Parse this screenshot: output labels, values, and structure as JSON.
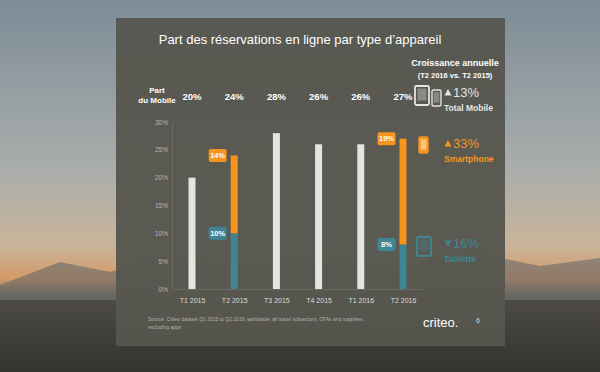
{
  "chart_data": {
    "type": "bar",
    "title": "Part des réservations en ligne par type d’appareil",
    "categories": [
      "T1 2015",
      "T2 2015",
      "T3 2015",
      "T4 2015",
      "T1 2016",
      "T2 2016"
    ],
    "series": [
      {
        "name": "Total Mobile",
        "color": "#e4e4e0",
        "values": [
          20,
          null,
          28,
          26,
          26,
          null
        ],
        "growth": 13,
        "growth_label": "13%"
      },
      {
        "name": "Tablette",
        "color": "#3f8594",
        "values": [
          null,
          10,
          null,
          null,
          null,
          8
        ],
        "value_labels": [
          null,
          "10%",
          null,
          null,
          null,
          "8%"
        ],
        "data_labels": true,
        "growth": -16,
        "growth_label": "16%"
      },
      {
        "name": "Smartphone",
        "color": "#f7941d",
        "values": [
          null,
          14,
          null,
          null,
          null,
          19
        ],
        "value_labels": [
          null,
          "14%",
          null,
          null,
          null,
          "19%"
        ],
        "data_labels": true,
        "growth": 33,
        "growth_label": "33%"
      }
    ],
    "stacked": true,
    "ylim": [
      0,
      30
    ],
    "yticks": [
      {
        "value": 0,
        "label": "0%"
      },
      {
        "value": 5,
        "label": "5%"
      },
      {
        "value": 10,
        "label": "10%"
      },
      {
        "value": 15,
        "label": "15%"
      },
      {
        "value": 20,
        "label": "20%"
      },
      {
        "value": 25,
        "label": "25%"
      },
      {
        "value": 30,
        "label": "30%"
      }
    ],
    "grid": false,
    "mobile_share": {
      "label": [
        "Part",
        "du Mobile"
      ],
      "values": [
        20,
        24,
        28,
        26,
        26,
        27
      ],
      "value_labels": [
        "20%",
        "24%",
        "28%",
        "26%",
        "26%",
        "27%"
      ]
    },
    "growth_title": [
      "Croissance annuelle",
      "(T2 2016 vs. T2 2015)"
    ],
    "source": [
      "Source: Criteo dataset Q1 2015 to Q2 2016, worldwide, all travel subsectors, OTAs and suppliers,",
      "excluding apps"
    ],
    "logo": "criteo.",
    "page_number": 6
  }
}
